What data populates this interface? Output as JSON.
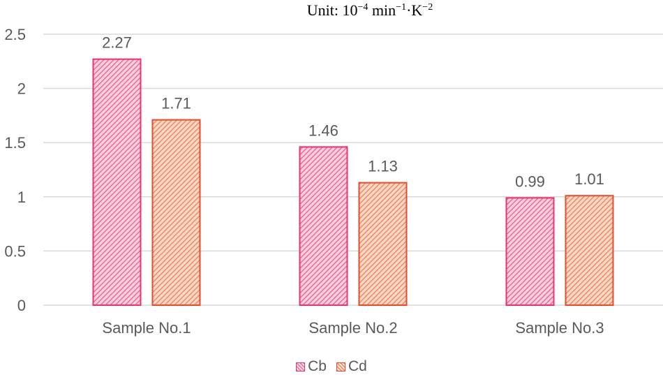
{
  "chart_data": {
    "type": "bar",
    "title": "Unit: 10⁻⁴ min⁻¹·K⁻²",
    "title_parts": {
      "prefix": "Unit: 10",
      "exp1": "−4",
      "mid1": " min",
      "exp2": "−1",
      "mid2": "·K",
      "exp3": "−2"
    },
    "categories": [
      "Sample No.1",
      "Sample No.2",
      "Sample No.3"
    ],
    "series": [
      {
        "name": "Cb",
        "values": [
          2.27,
          1.46,
          0.99
        ],
        "labels": [
          "2.27",
          "1.46",
          "0.99"
        ],
        "color": "#e8336f",
        "fill": "#f47fa8"
      },
      {
        "name": "Cd",
        "values": [
          1.71,
          1.13,
          1.01
        ],
        "labels": [
          "1.71",
          "1.13",
          "1.01"
        ],
        "color": "#e84a2c",
        "fill": "#f4956e"
      }
    ],
    "yticks": [
      "0",
      "0.5",
      "1",
      "1.5",
      "2",
      "2.5"
    ],
    "ylim": [
      0,
      2.5
    ],
    "xlabel": "",
    "ylabel": "",
    "grid": true,
    "legend_position": "bottom",
    "bar_pattern": "diagonal-hatch"
  }
}
